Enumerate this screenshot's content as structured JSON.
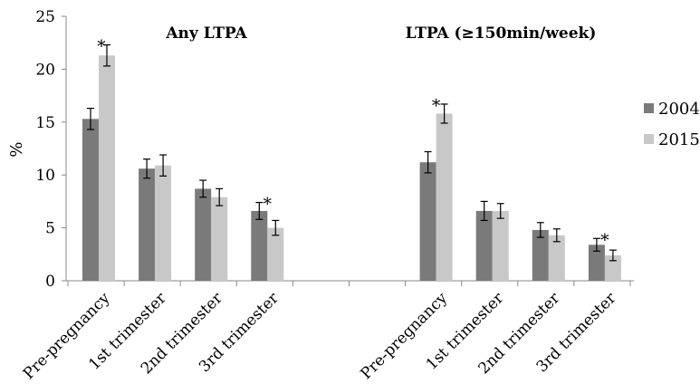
{
  "chart_data": {
    "type": "bar",
    "ylabel": "%",
    "ylim": [
      0,
      25
    ],
    "yticks": [
      0,
      5,
      10,
      15,
      20,
      25
    ],
    "grid": false,
    "legend_position": "right",
    "groups": [
      {
        "title": "Any LTPA",
        "categories": [
          "Pre-pregnancy",
          "1st trimester",
          "2nd trimester",
          "3rd trimester"
        ],
        "series": [
          {
            "name": "2004",
            "values": [
              15.3,
              10.6,
              8.7,
              6.6
            ],
            "error": [
              1.0,
              0.9,
              0.8,
              0.8
            ]
          },
          {
            "name": "2015",
            "values": [
              21.3,
              10.9,
              7.9,
              5.0
            ],
            "error": [
              1.0,
              1.0,
              0.8,
              0.7
            ]
          }
        ],
        "significant": [
          true,
          false,
          false,
          true
        ]
      },
      {
        "title": "LTPA (≥150min/week)",
        "categories": [
          "Pre-pregnancy",
          "1st trimester",
          "2nd trimester",
          "3rd trimester"
        ],
        "series": [
          {
            "name": "2004",
            "values": [
              11.2,
              6.6,
              4.8,
              3.4
            ],
            "error": [
              1.0,
              0.9,
              0.7,
              0.6
            ]
          },
          {
            "name": "2015",
            "values": [
              15.8,
              6.6,
              4.3,
              2.4
            ],
            "error": [
              0.9,
              0.7,
              0.6,
              0.5
            ]
          }
        ],
        "significant": [
          true,
          false,
          false,
          true
        ]
      }
    ],
    "annotation_symbol": "*",
    "colors": {
      "2004": "#7a7a7a",
      "2015": "#c8c8c8"
    }
  }
}
